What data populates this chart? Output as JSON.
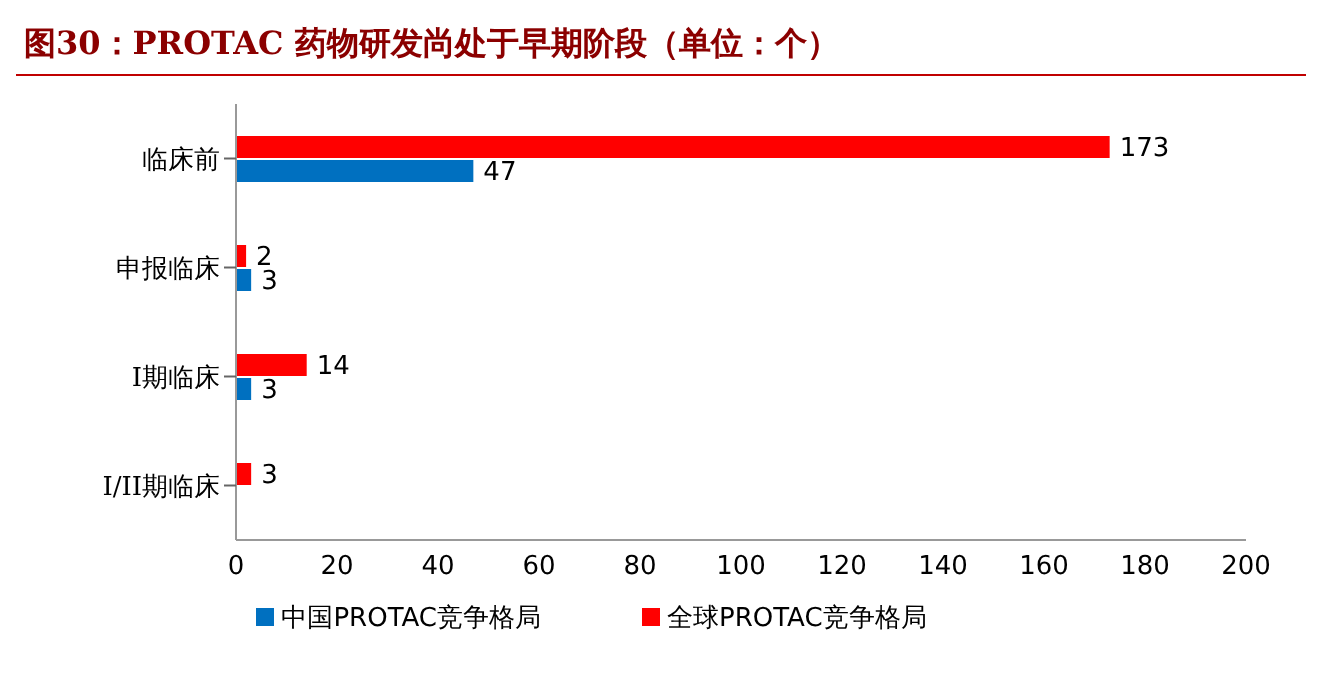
{
  "chart_data": {
    "type": "bar",
    "orientation": "horizontal",
    "title": "图30：PROTAC 药物研发尚处于早期阶段（单位：个）",
    "categories": [
      "临床前",
      "申报临床",
      "I期临床",
      "I/II期临床"
    ],
    "series": [
      {
        "name": "全球PROTAC竞争格局",
        "color": "#ff0000",
        "values": [
          173,
          2,
          14,
          3
        ]
      },
      {
        "name": "中国PROTAC竞争格局",
        "color": "#0070c0",
        "values": [
          47,
          3,
          3,
          null
        ]
      }
    ],
    "xlim": [
      0,
      200
    ],
    "xticks": [
      0,
      20,
      40,
      60,
      80,
      100,
      120,
      140,
      160,
      180,
      200
    ],
    "data_labels": true,
    "legend": "bottom",
    "grid": false
  }
}
